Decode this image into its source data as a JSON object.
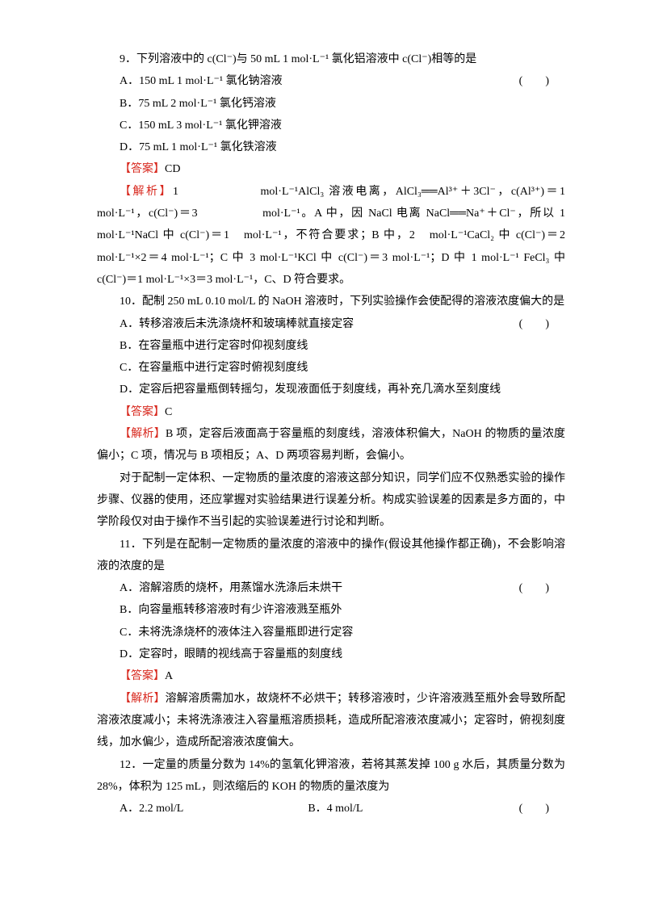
{
  "q9": {
    "stem": "9．下列溶液中的 c(Cl⁻)与 50 mL 1 mol·L⁻¹ 氯化铝溶液中 c(Cl⁻)相等的是",
    "paren": "(　　)",
    "opts": {
      "A": "A．150 mL 1 mol·L⁻¹ 氯化钠溶液",
      "B": "B．75 mL 2 mol·L⁻¹ 氯化钙溶液",
      "C": "C．150 mL 3 mol·L⁻¹ 氯化钾溶液",
      "D": "D．75 mL 1 mol·L⁻¹ 氯化铁溶液"
    },
    "ans_label": "【答案】",
    "ans": "CD",
    "exp_label": "【解析】",
    "exp": "1　　　　　　mol·L⁻¹AlCl₃ 溶液电离，AlCl₃══Al³⁺＋3Cl⁻，c(Al³⁺)＝1 mol·L⁻¹，c(Cl⁻)＝3　　　　　mol·L⁻¹。A 中，因 NaCl 电离 NaCl══Na⁺＋Cl⁻，所以 1 mol·L⁻¹NaCl 中 c(Cl⁻)＝1　mol·L⁻¹，不符合要求；B 中，2　mol·L⁻¹CaCl₂ 中 c(Cl⁻)＝2 mol·L⁻¹×2＝4 mol·L⁻¹；C 中 3 mol·L⁻¹KCl 中 c(Cl⁻)＝3 mol·L⁻¹；D 中 1 mol·L⁻¹ FeCl₃ 中 c(Cl⁻)＝1 mol·L⁻¹×3＝3 mol·L⁻¹，C、D 符合要求。"
  },
  "q10": {
    "stem": "10．配制 250 mL 0.10 mol/L 的 NaOH 溶液时，下列实验操作会使配得的溶液浓度偏大的是",
    "paren": "(　　)",
    "opts": {
      "A": "A．转移溶液后未洗涤烧杯和玻璃棒就直接定容",
      "B": "B．在容量瓶中进行定容时仰视刻度线",
      "C": "C．在容量瓶中进行定容时俯视刻度线",
      "D": "D．定容后把容量瓶倒转摇匀，发现液面低于刻度线，再补充几滴水至刻度线"
    },
    "ans_label": "【答案】",
    "ans": "C",
    "exp_label": "【解析】",
    "exp": "B 项，定容后液面高于容量瓶的刻度线，溶液体积偏大，NaOH 的物质的量浓度偏小；C 项，情况与 B 项相反；A、D 两项容易判断，会偏小。",
    "note": "对于配制一定体积、一定物质的量浓度的溶液这部分知识，同学们应不仅熟悉实验的操作步骤、仪器的使用，还应掌握对实验结果进行误差分析。构成实验误差的因素是多方面的，中学阶段仅对由于操作不当引起的实验误差进行讨论和判断。"
  },
  "q11": {
    "stem": "11．下列是在配制一定物质的量浓度的溶液中的操作(假设其他操作都正确)，不会影响溶液的浓度的是",
    "paren": "(　　)",
    "opts": {
      "A": "A．溶解溶质的烧杯，用蒸馏水洗涤后未烘干",
      "B": "B．向容量瓶转移溶液时有少许溶液溅至瓶外",
      "C": "C．未将洗涤烧杯的液体注入容量瓶即进行定容",
      "D": "D．定容时，眼睛的视线高于容量瓶的刻度线"
    },
    "ans_label": "【答案】",
    "ans": "A",
    "exp_label": "【解析】",
    "exp": "溶解溶质需加水，故烧杯不必烘干；转移溶液时，少许溶液溅至瓶外会导致所配溶液浓度减小；未将洗涤液注入容量瓶溶质损耗，造成所配溶液浓度减小；定容时，俯视刻度线，加水偏少，造成所配溶液浓度偏大。"
  },
  "q12": {
    "stem": "12．一定量的质量分数为 14%的氢氧化钾溶液，若将其蒸发掉 100 g 水后，其质量分数为 28%，体积为 125 mL，则浓缩后的 KOH 的物质的量浓度为",
    "paren": "(　　)",
    "opts": {
      "A": "A．2.2 mol/L",
      "B": "B．4 mol/L"
    }
  },
  "colors": {
    "red": "#d8281e",
    "text": "#000000",
    "bg": "#ffffff"
  },
  "font": {
    "size": 14,
    "line_height": 1.95,
    "family": "SimSun"
  }
}
